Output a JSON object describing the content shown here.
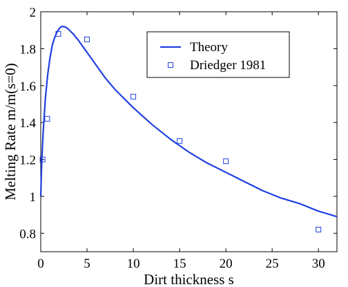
{
  "chart_data": {
    "type": "line",
    "title": "",
    "xlabel": "Dirt thickness s",
    "ylabel": "Melting Rate m/m(s=0)",
    "xlim": [
      0,
      32
    ],
    "ylim": [
      0.7,
      2.0
    ],
    "xticks": [
      0,
      5,
      10,
      15,
      20,
      25,
      30
    ],
    "yticks": [
      0.8,
      1,
      1.2,
      1.4,
      1.6,
      1.8,
      2
    ],
    "xtick_labels": [
      "0",
      "5",
      "10",
      "15",
      "20",
      "25",
      "30"
    ],
    "ytick_labels": [
      "0.8",
      "1",
      "1.2",
      "1.4",
      "1.6",
      "1.8",
      "2"
    ],
    "grid": false,
    "legend_position": "top-right",
    "series": [
      {
        "name": "Theory",
        "kind": "line",
        "color": "#1f3fe0",
        "x": [
          0,
          0.1,
          0.25,
          0.5,
          0.75,
          1.0,
          1.25,
          1.5,
          1.75,
          2.0,
          2.25,
          2.5,
          2.75,
          3.0,
          3.5,
          4.0,
          5.0,
          6.0,
          7.0,
          8.0,
          9.0,
          10.0,
          12.0,
          14.0,
          16.0,
          18.0,
          20.0,
          22.0,
          24.0,
          26.0,
          28.0,
          30.0,
          32.0
        ],
        "y": [
          1.0,
          1.17,
          1.34,
          1.53,
          1.66,
          1.75,
          1.82,
          1.86,
          1.89,
          1.91,
          1.92,
          1.92,
          1.915,
          1.905,
          1.88,
          1.85,
          1.78,
          1.71,
          1.64,
          1.58,
          1.53,
          1.48,
          1.39,
          1.31,
          1.24,
          1.18,
          1.13,
          1.08,
          1.03,
          0.99,
          0.96,
          0.92,
          0.89
        ]
      },
      {
        "name": "Driedger 1981",
        "kind": "scatter",
        "marker": "square",
        "color": "#1f3fe0",
        "x": [
          0.2,
          0.7,
          1.9,
          5.0,
          10.0,
          15.0,
          20.0,
          30.0
        ],
        "y": [
          1.2,
          1.42,
          1.88,
          1.85,
          1.54,
          1.3,
          1.19,
          0.82
        ]
      }
    ]
  }
}
